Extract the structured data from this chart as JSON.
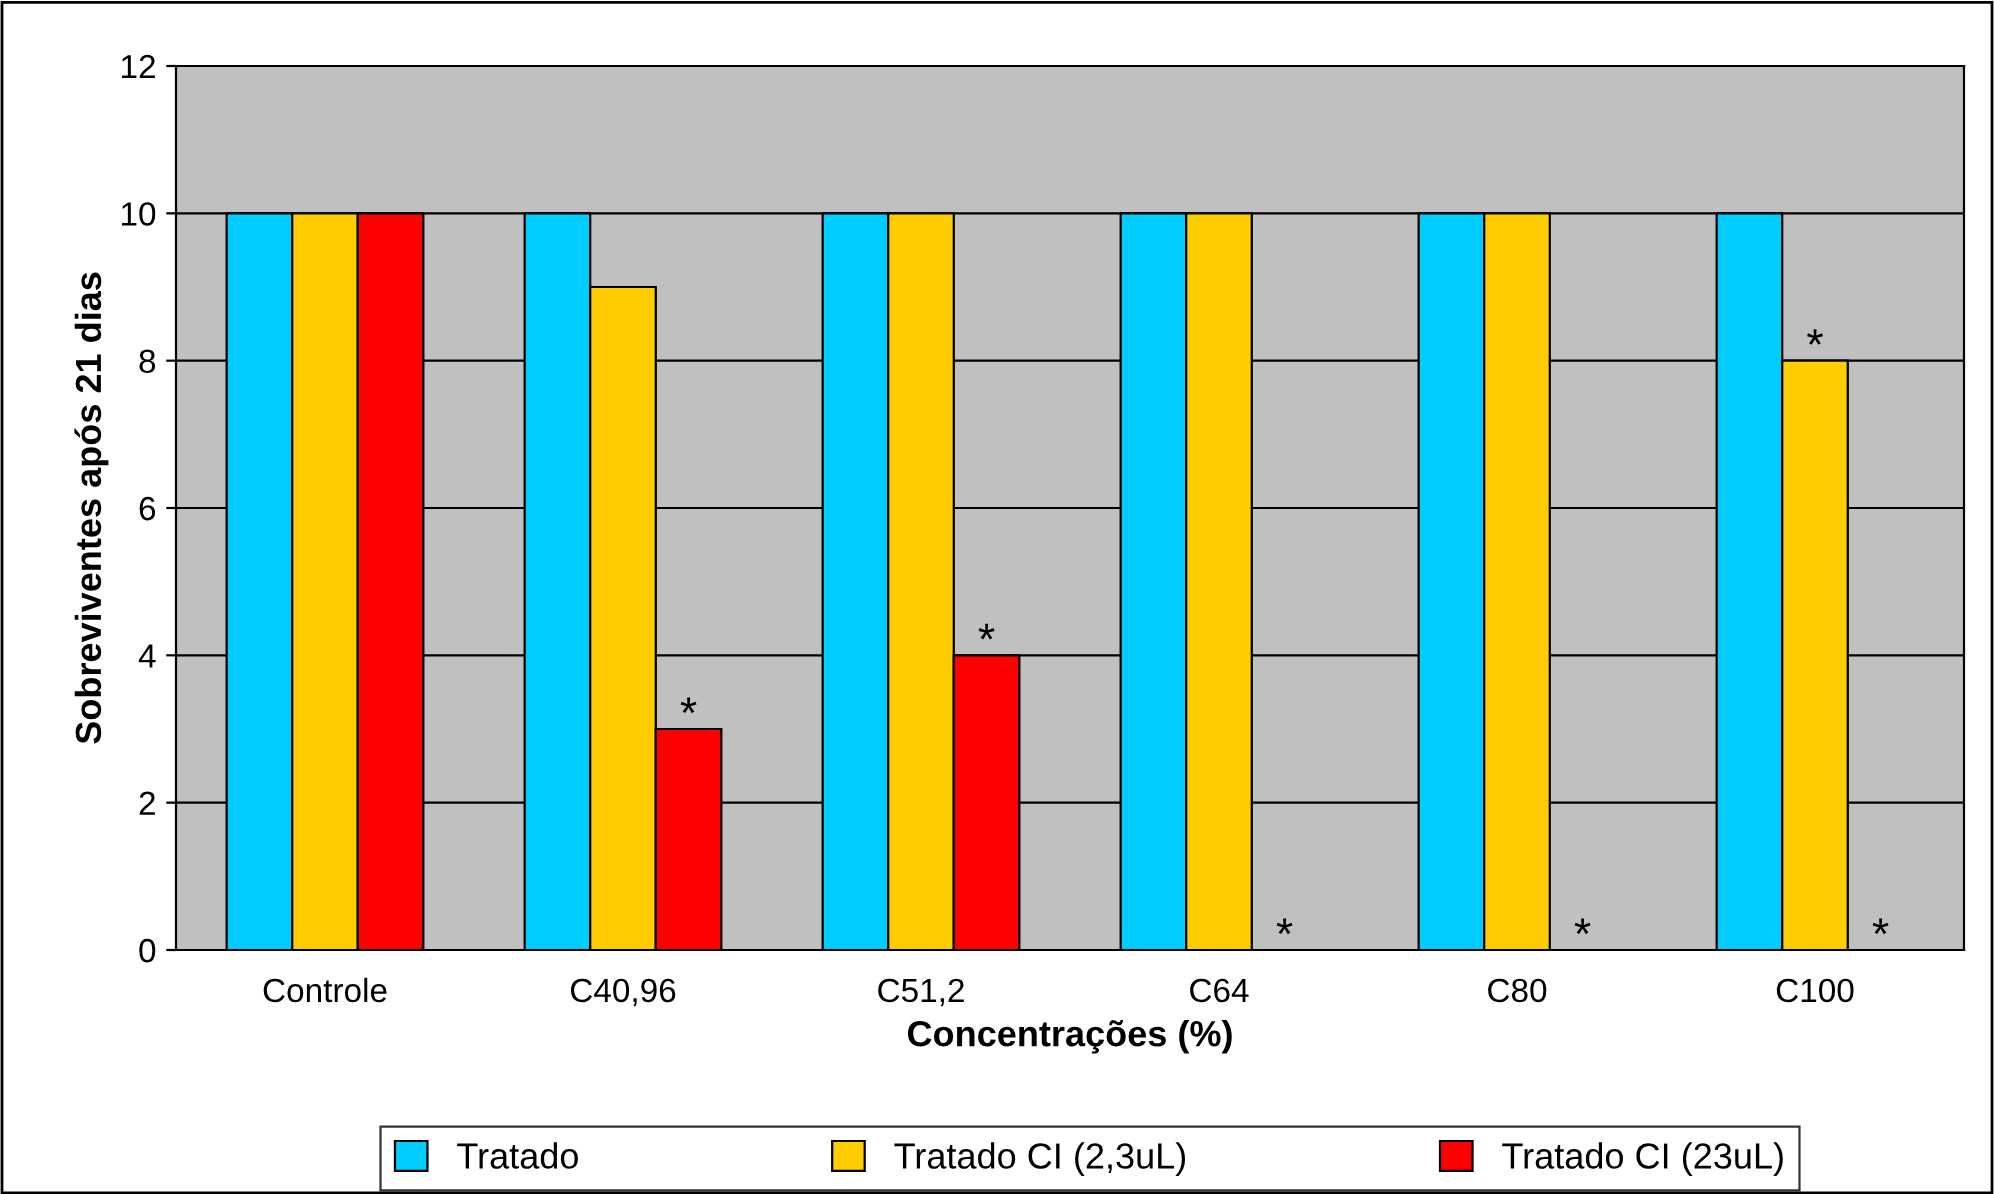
{
  "chart_data": {
    "type": "bar",
    "xlabel": "Concentrações (%)",
    "ylabel": "Sobreviventes após 21 dias",
    "categories": [
      "Controle",
      "C40,96",
      "C51,2",
      "C64",
      "C80",
      "C100"
    ],
    "series": [
      {
        "name": "Tratado",
        "color": "#00ccff",
        "values": [
          10,
          10,
          10,
          10,
          10,
          10
        ]
      },
      {
        "name": "Tratado CI (2,3uL)",
        "color": "#ffcc00",
        "values": [
          10,
          9,
          10,
          10,
          10,
          8
        ]
      },
      {
        "name": "Tratado CI (23uL)",
        "color": "#ff0000",
        "values": [
          10,
          3,
          4,
          0,
          0,
          0
        ]
      }
    ],
    "ylim": [
      0,
      12
    ],
    "yticks": [
      0,
      2,
      4,
      6,
      8,
      10,
      12
    ],
    "grid": "y",
    "legend": "bottom",
    "annotations": [
      {
        "text": "*",
        "y": 3
      },
      {
        "text": "*",
        "y": 4
      },
      {
        "text": "*",
        "x": "C64",
        "y": 0
      },
      {
        "text": "*",
        "x": "C80",
        "y": 0
      },
      {
        "text": "*",
        "x": "C100",
        "y": 8
      },
      {
        "text": "*",
        "x": "C100",
        "y": 0
      }
    ]
  }
}
